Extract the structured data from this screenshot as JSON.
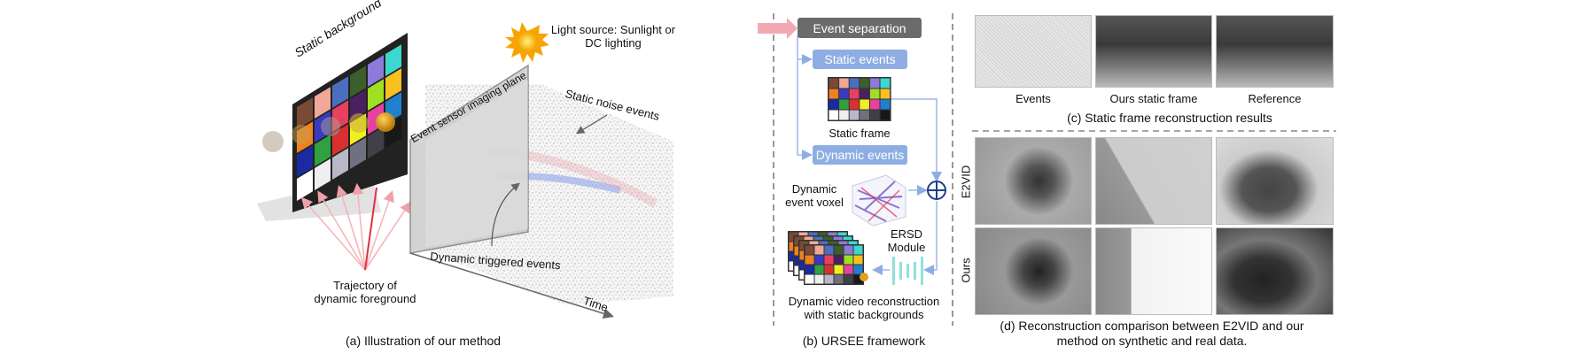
{
  "panel_a": {
    "static_background": "Static background",
    "light_source": [
      "Light source: Sunlight or",
      "DC lighting"
    ],
    "imaging_plane": "Event sensor imaging plane",
    "static_noise": "Static noise events",
    "dynamic_triggered": "Dynamic triggered events",
    "trajectory": [
      "Trajectory of",
      "dynamic foreground"
    ],
    "time": "Time",
    "caption": "(a) Illustration of our method"
  },
  "panel_b": {
    "event_separation": "Event separation",
    "static_events": "Static events",
    "static_frame": "Static frame",
    "dynamic_events": "Dynamic events",
    "voxel": [
      "Dynamic",
      "event voxel"
    ],
    "ersd": [
      "ERSD",
      "Module"
    ],
    "output": [
      "Dynamic video reconstruction",
      "with static backgrounds"
    ],
    "caption": "(b) URSEE framework",
    "colors": {
      "box_gray": "#6b6b6b",
      "box_blue": "#8eaee3",
      "arrow_pink": "#f2a9b3",
      "line_blue": "#9db6e6"
    }
  },
  "panel_c": {
    "labels": [
      "Events",
      "Ours static frame",
      "Reference"
    ],
    "caption": "(c) Static frame reconstruction results"
  },
  "panel_d": {
    "rows": [
      "E2VID",
      "Ours"
    ],
    "caption": [
      "(d) Reconstruction comparison between E2VID and our",
      "method on synthetic and real data."
    ]
  },
  "color_checker": [
    [
      "#7a4a35",
      "#f2a897",
      "#4a6fc0",
      "#3b5f2a",
      "#8e7ad8",
      "#3ad8d0"
    ],
    [
      "#f08020",
      "#3a3ac0",
      "#e84060",
      "#4a2060",
      "#a0e020",
      "#f8c020"
    ],
    [
      "#1a2aa0",
      "#30a040",
      "#d83030",
      "#f0f020",
      "#e840a0",
      "#2080d0"
    ],
    [
      "#ffffff",
      "#eeeeee",
      "#b8b8c8",
      "#707080",
      "#404048",
      "#181818"
    ]
  ]
}
